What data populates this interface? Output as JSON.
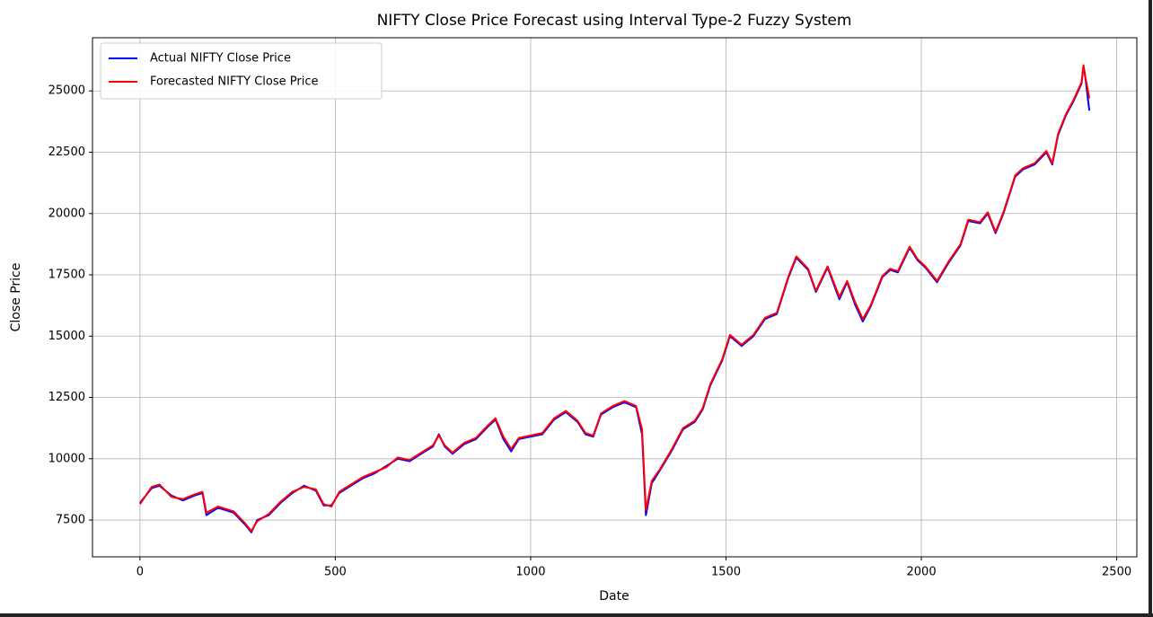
{
  "chart_data": {
    "type": "line",
    "title": "NIFTY Close Price Forecast using Interval Type-2 Fuzzy System",
    "xlabel": "Date",
    "ylabel": "Close Price",
    "x": [
      0,
      30,
      50,
      80,
      110,
      140,
      160,
      170,
      200,
      240,
      270,
      285,
      300,
      330,
      360,
      390,
      420,
      450,
      470,
      490,
      510,
      540,
      570,
      600,
      630,
      660,
      690,
      720,
      750,
      765,
      780,
      800,
      830,
      860,
      890,
      910,
      930,
      950,
      970,
      1000,
      1030,
      1060,
      1090,
      1120,
      1140,
      1160,
      1180,
      1210,
      1240,
      1270,
      1285,
      1295,
      1310,
      1330,
      1360,
      1390,
      1420,
      1440,
      1460,
      1490,
      1510,
      1540,
      1570,
      1600,
      1630,
      1660,
      1680,
      1710,
      1730,
      1760,
      1790,
      1810,
      1830,
      1850,
      1870,
      1900,
      1920,
      1940,
      1970,
      1990,
      2010,
      2040,
      2070,
      2100,
      2120,
      2150,
      2170,
      2190,
      2210,
      2240,
      2260,
      2290,
      2320,
      2335,
      2350,
      2370,
      2390,
      2410,
      2415,
      2420,
      2430
    ],
    "series": [
      {
        "name": "Actual NIFTY Close Price",
        "color": "#0000ff",
        "values": [
          8200,
          8800,
          8900,
          8500,
          8300,
          8500,
          8600,
          7700,
          8000,
          7800,
          7300,
          7000,
          7500,
          7700,
          8200,
          8600,
          8900,
          8700,
          8100,
          8100,
          8600,
          8900,
          9200,
          9400,
          9700,
          10000,
          9900,
          10200,
          10500,
          11000,
          10500,
          10200,
          10600,
          10800,
          11300,
          11600,
          10800,
          10300,
          10800,
          10900,
          11000,
          11600,
          11900,
          11500,
          11000,
          10900,
          11800,
          12100,
          12300,
          12100,
          11000,
          7700,
          9000,
          9500,
          10300,
          11200,
          11500,
          12000,
          13000,
          14000,
          15000,
          14600,
          15000,
          15700,
          15900,
          17400,
          18200,
          17700,
          16800,
          17800,
          16500,
          17200,
          16300,
          15600,
          16200,
          17400,
          17700,
          17600,
          18600,
          18100,
          17800,
          17200,
          18000,
          18700,
          19700,
          19600,
          20000,
          19200,
          20000,
          21500,
          21800,
          22000,
          22500,
          22000,
          23200,
          24000,
          24600,
          25300,
          26000,
          25500,
          24200
        ]
      },
      {
        "name": "Forecasted NIFTY Close Price",
        "color": "#ff0000",
        "values": [
          8150,
          8850,
          8950,
          8450,
          8350,
          8550,
          8650,
          7800,
          8050,
          7850,
          7350,
          7050,
          7450,
          7750,
          8250,
          8650,
          8850,
          8750,
          8150,
          8050,
          8650,
          8950,
          9250,
          9450,
          9650,
          10050,
          9950,
          10250,
          10550,
          10950,
          10550,
          10250,
          10650,
          10850,
          11350,
          11650,
          10900,
          10400,
          10850,
          10950,
          11050,
          11650,
          11950,
          11550,
          11050,
          10950,
          11850,
          12150,
          12350,
          12150,
          11200,
          7900,
          9100,
          9550,
          10350,
          11250,
          11550,
          12050,
          13050,
          14050,
          15050,
          14650,
          15050,
          15750,
          15950,
          17450,
          18250,
          17750,
          16850,
          17850,
          16600,
          17250,
          16400,
          15700,
          16250,
          17450,
          17750,
          17650,
          18650,
          18150,
          17850,
          17250,
          18050,
          18750,
          19750,
          19650,
          20050,
          19250,
          20050,
          21550,
          21850,
          22050,
          22550,
          22050,
          23250,
          24050,
          24650,
          25350,
          26050,
          25550,
          24700
        ]
      }
    ],
    "xlim": [
      -121.5,
      2551.5
    ],
    "xticks": [
      0,
      500,
      1000,
      1500,
      2000,
      2500
    ],
    "ylim": [
      6000,
      27170
    ],
    "yticks": [
      7500,
      10000,
      12500,
      15000,
      17500,
      20000,
      22500,
      25000
    ],
    "grid": true,
    "legend": "upper left"
  }
}
